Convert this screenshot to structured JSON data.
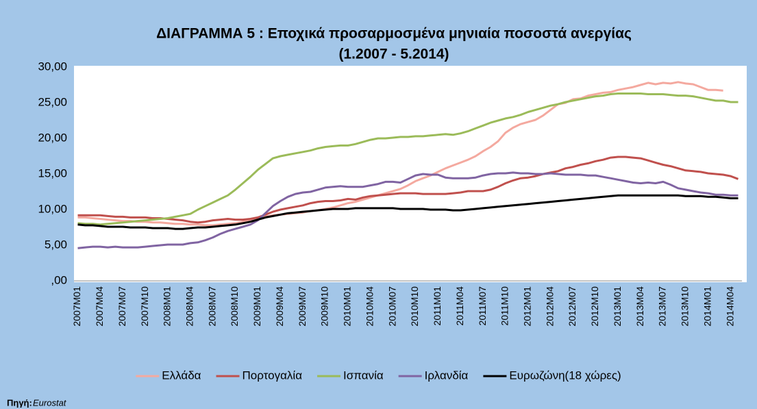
{
  "chart_data": {
    "type": "line",
    "title": "ΔΙΑΓΡΑΜΜΑ 5 : Εποχικά προσαρμοσμένα μηνιαία ποσοστά ανεργίας",
    "subtitle": "(1.2007 - 5.2014)",
    "source_label": "Πηγή:",
    "source_name": "Eurostat",
    "categories": [
      "2007M01",
      null,
      null,
      "2007M04",
      null,
      null,
      "2007M07",
      null,
      null,
      "2007M10",
      null,
      null,
      "2008M01",
      null,
      null,
      "2008M04",
      null,
      null,
      "2008M07",
      null,
      null,
      "2008M10",
      null,
      null,
      "2009M01",
      null,
      null,
      "2009M04",
      null,
      null,
      "2009M07",
      null,
      null,
      "2009M10",
      null,
      null,
      "2010M01",
      null,
      null,
      "2010M04",
      null,
      null,
      "2010M07",
      null,
      null,
      "2010M10",
      null,
      null,
      "2011M01",
      null,
      null,
      "2011M04",
      null,
      null,
      "2011M07",
      null,
      null,
      "2011M10",
      null,
      null,
      "2012M01",
      null,
      null,
      "2012M04",
      null,
      null,
      "2012M07",
      null,
      null,
      "2012M10",
      null,
      null,
      "2013M01",
      null,
      null,
      "2013M04",
      null,
      null,
      "2013M07",
      null,
      null,
      "2013M10",
      null,
      null,
      "2014M01",
      null,
      null,
      "2014M04",
      null
    ],
    "series": [
      {
        "name": "Ελλάδα",
        "color": "#f4a99f",
        "values": [
          8.9,
          8.9,
          8.8,
          8.7,
          8.6,
          8.5,
          8.4,
          8.4,
          8.3,
          8.3,
          8.2,
          8.2,
          8.1,
          8.0,
          8.0,
          7.9,
          7.9,
          7.8,
          7.8,
          7.9,
          8.0,
          8.1,
          8.3,
          8.5,
          8.8,
          9.0,
          9.2,
          9.3,
          9.4,
          9.5,
          9.6,
          9.8,
          9.9,
          10.1,
          10.3,
          10.6,
          10.9,
          11.1,
          11.4,
          11.7,
          12.0,
          12.3,
          12.6,
          12.9,
          13.4,
          14.0,
          14.4,
          14.8,
          15.3,
          15.8,
          16.2,
          16.6,
          17.0,
          17.5,
          18.2,
          18.8,
          19.6,
          20.8,
          21.5,
          22.0,
          22.3,
          22.6,
          23.2,
          24.0,
          24.8,
          25.0,
          25.5,
          25.6,
          26.0,
          26.2,
          26.4,
          26.5,
          26.8,
          27.0,
          27.2,
          27.5,
          27.8,
          27.6,
          27.8,
          27.7,
          27.9,
          27.7,
          27.6,
          27.2,
          26.8,
          26.8,
          26.7,
          null,
          null
        ]
      },
      {
        "name": "Πορτογαλία",
        "color": "#c0504d",
        "values": [
          9.2,
          9.2,
          9.2,
          9.2,
          9.1,
          9.0,
          9.0,
          8.9,
          8.9,
          8.9,
          8.8,
          8.8,
          8.7,
          8.6,
          8.5,
          8.3,
          8.2,
          8.3,
          8.5,
          8.6,
          8.7,
          8.6,
          8.6,
          8.7,
          8.9,
          9.3,
          9.7,
          10.0,
          10.2,
          10.4,
          10.6,
          10.9,
          11.1,
          11.2,
          11.2,
          11.3,
          11.5,
          11.4,
          11.7,
          11.9,
          12.0,
          12.1,
          12.2,
          12.3,
          12.3,
          12.3,
          12.2,
          12.2,
          12.2,
          12.2,
          12.3,
          12.4,
          12.6,
          12.6,
          12.6,
          12.8,
          13.2,
          13.7,
          14.1,
          14.4,
          14.5,
          14.7,
          15.0,
          15.2,
          15.4,
          15.8,
          16.0,
          16.3,
          16.5,
          16.8,
          17.0,
          17.3,
          17.4,
          17.4,
          17.3,
          17.2,
          16.9,
          16.6,
          16.3,
          16.1,
          15.8,
          15.5,
          15.4,
          15.3,
          15.1,
          15.0,
          14.9,
          14.7,
          14.3
        ]
      },
      {
        "name": "Ισπανία",
        "color": "#9bbb59",
        "values": [
          8.1,
          8.0,
          8.0,
          7.9,
          8.0,
          8.1,
          8.2,
          8.3,
          8.4,
          8.5,
          8.6,
          8.7,
          8.8,
          9.0,
          9.2,
          9.4,
          10.0,
          10.5,
          11.0,
          11.5,
          12.0,
          12.8,
          13.7,
          14.6,
          15.6,
          16.4,
          17.2,
          17.5,
          17.7,
          17.9,
          18.1,
          18.3,
          18.6,
          18.8,
          18.9,
          19.0,
          19.0,
          19.2,
          19.5,
          19.8,
          20.0,
          20.0,
          20.1,
          20.2,
          20.2,
          20.3,
          20.3,
          20.4,
          20.5,
          20.6,
          20.5,
          20.7,
          21.0,
          21.4,
          21.8,
          22.2,
          22.5,
          22.8,
          23.0,
          23.3,
          23.7,
          24.0,
          24.3,
          24.6,
          24.8,
          25.1,
          25.3,
          25.5,
          25.7,
          25.9,
          26.0,
          26.2,
          26.3,
          26.3,
          26.3,
          26.3,
          26.2,
          26.2,
          26.2,
          26.1,
          26.0,
          26.0,
          25.9,
          25.7,
          25.5,
          25.3,
          25.3,
          25.1,
          25.1
        ]
      },
      {
        "name": "Ιρλανδία",
        "color": "#8064a2",
        "values": [
          4.6,
          4.7,
          4.8,
          4.8,
          4.7,
          4.8,
          4.7,
          4.7,
          4.7,
          4.8,
          4.9,
          5.0,
          5.1,
          5.1,
          5.1,
          5.3,
          5.4,
          5.7,
          6.1,
          6.6,
          7.0,
          7.3,
          7.6,
          7.9,
          8.5,
          9.5,
          10.5,
          11.2,
          11.8,
          12.2,
          12.4,
          12.5,
          12.8,
          13.1,
          13.2,
          13.3,
          13.2,
          13.2,
          13.2,
          13.4,
          13.6,
          13.9,
          13.9,
          13.8,
          14.3,
          14.8,
          15.0,
          14.9,
          14.9,
          14.5,
          14.4,
          14.4,
          14.4,
          14.5,
          14.8,
          15.0,
          15.1,
          15.1,
          15.2,
          15.1,
          15.1,
          15.0,
          15.0,
          15.1,
          15.0,
          14.9,
          14.9,
          14.9,
          14.8,
          14.8,
          14.6,
          14.4,
          14.2,
          14.0,
          13.8,
          13.7,
          13.8,
          13.7,
          13.9,
          13.5,
          13.0,
          12.8,
          12.6,
          12.4,
          12.3,
          12.1,
          12.1,
          12.0,
          12.0
        ]
      },
      {
        "name": "Ευρωζώνη(18 χώρες)",
        "color": "#000000",
        "values": [
          7.9,
          7.8,
          7.8,
          7.7,
          7.6,
          7.6,
          7.6,
          7.5,
          7.5,
          7.5,
          7.4,
          7.4,
          7.4,
          7.3,
          7.3,
          7.4,
          7.5,
          7.5,
          7.6,
          7.7,
          7.8,
          7.9,
          8.1,
          8.3,
          8.6,
          8.9,
          9.1,
          9.3,
          9.5,
          9.6,
          9.7,
          9.8,
          9.9,
          10.0,
          10.1,
          10.1,
          10.1,
          10.2,
          10.2,
          10.2,
          10.2,
          10.2,
          10.2,
          10.1,
          10.1,
          10.1,
          10.1,
          10.0,
          10.0,
          10.0,
          9.9,
          9.9,
          10.0,
          10.1,
          10.2,
          10.3,
          10.4,
          10.5,
          10.6,
          10.7,
          10.8,
          10.9,
          11.0,
          11.1,
          11.2,
          11.3,
          11.4,
          11.5,
          11.6,
          11.7,
          11.8,
          11.9,
          12.0,
          12.0,
          12.0,
          12.0,
          12.0,
          12.0,
          12.0,
          12.0,
          12.0,
          11.9,
          11.9,
          11.9,
          11.8,
          11.8,
          11.7,
          11.6,
          11.6
        ]
      }
    ],
    "ylim": [
      0,
      30
    ],
    "yticks": [
      {
        "value": 0,
        "label": ",00"
      },
      {
        "value": 5,
        "label": "5,00"
      },
      {
        "value": 10,
        "label": "10,00"
      },
      {
        "value": 15,
        "label": "15,00"
      },
      {
        "value": 20,
        "label": "20,00"
      },
      {
        "value": 25,
        "label": "25,00"
      },
      {
        "value": 30,
        "label": "30,00"
      }
    ],
    "grid": false,
    "legend": "bottom"
  }
}
